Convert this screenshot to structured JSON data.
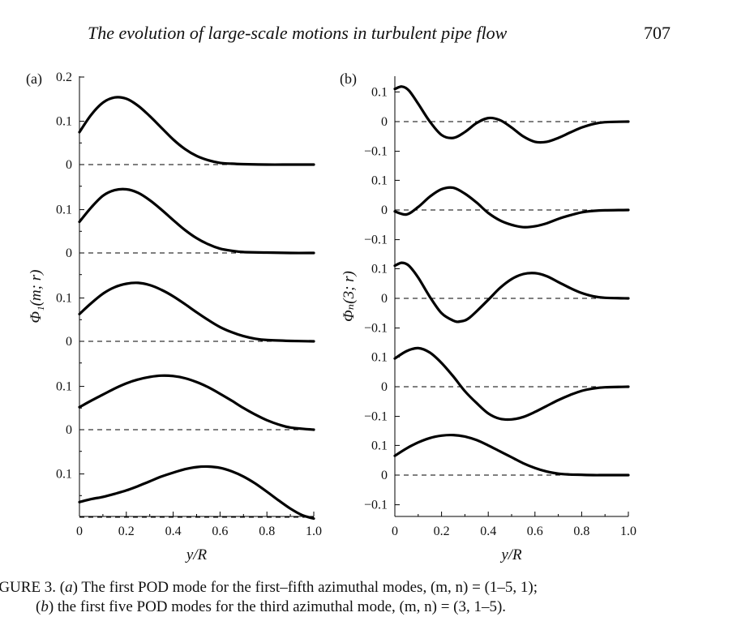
{
  "running_head": {
    "title": "The evolution of large-scale motions in turbulent pipe flow",
    "page_number": "707"
  },
  "caption": {
    "line1_prefix": "IGURE 3. (",
    "line1_a": "a",
    "line1_rest": ") The first POD mode for the first–fifth azimuthal modes, (m, n) = (1–5, 1);",
    "line2_prefix": "(",
    "line2_b": "b",
    "line2_rest": ") the first five POD modes for the third azimuthal mode, (m, n) = (3, 1–5)."
  },
  "chart_data": [
    {
      "panel_label": "(a)",
      "type": "line",
      "xlabel": "y/R",
      "ylabel": "Φ₁(m; r)",
      "xlim": [
        0,
        1
      ],
      "x_ticks": [
        "0",
        "0.2",
        "0.4",
        "0.6",
        "0.8",
        "1.0"
      ],
      "top_tick_label": "0.2",
      "stack_tick_labels": [
        "0.1",
        "0"
      ],
      "series": [
        {
          "x": [
            0,
            0.05,
            0.1,
            0.15,
            0.2,
            0.25,
            0.3,
            0.35,
            0.4,
            0.45,
            0.5,
            0.55,
            0.6,
            0.65,
            0.7,
            0.8,
            0.9,
            1.0
          ],
          "values": [
            0.075,
            0.115,
            0.143,
            0.155,
            0.152,
            0.136,
            0.112,
            0.085,
            0.058,
            0.036,
            0.02,
            0.01,
            0.004,
            0.002,
            0.001,
            0.0,
            0.0,
            0.0
          ]
        },
        {
          "x": [
            0,
            0.05,
            0.1,
            0.15,
            0.2,
            0.25,
            0.3,
            0.35,
            0.4,
            0.45,
            0.5,
            0.55,
            0.6,
            0.65,
            0.7,
            0.8,
            0.9,
            1.0
          ],
          "values": [
            0.072,
            0.105,
            0.132,
            0.145,
            0.147,
            0.139,
            0.122,
            0.1,
            0.076,
            0.053,
            0.034,
            0.02,
            0.01,
            0.005,
            0.002,
            0.001,
            0.0,
            0.0
          ]
        },
        {
          "x": [
            0,
            0.05,
            0.1,
            0.15,
            0.2,
            0.25,
            0.3,
            0.35,
            0.4,
            0.45,
            0.5,
            0.55,
            0.6,
            0.65,
            0.7,
            0.75,
            0.8,
            0.9,
            1.0
          ],
          "values": [
            0.063,
            0.088,
            0.11,
            0.125,
            0.133,
            0.135,
            0.13,
            0.119,
            0.104,
            0.086,
            0.067,
            0.049,
            0.033,
            0.021,
            0.012,
            0.006,
            0.003,
            0.001,
            0.0
          ]
        },
        {
          "x": [
            0,
            0.05,
            0.1,
            0.15,
            0.2,
            0.25,
            0.3,
            0.35,
            0.4,
            0.45,
            0.5,
            0.55,
            0.6,
            0.65,
            0.7,
            0.75,
            0.8,
            0.85,
            0.9,
            1.0
          ],
          "values": [
            0.052,
            0.067,
            0.081,
            0.095,
            0.107,
            0.116,
            0.122,
            0.125,
            0.124,
            0.119,
            0.11,
            0.098,
            0.083,
            0.067,
            0.05,
            0.035,
            0.022,
            0.012,
            0.005,
            0.0
          ]
        },
        {
          "x": [
            0,
            0.05,
            0.1,
            0.15,
            0.2,
            0.25,
            0.3,
            0.35,
            0.4,
            0.45,
            0.5,
            0.55,
            0.6,
            0.65,
            0.7,
            0.75,
            0.8,
            0.85,
            0.9,
            0.95,
            1.0
          ],
          "values": [
            0.035,
            0.042,
            0.047,
            0.054,
            0.062,
            0.072,
            0.083,
            0.094,
            0.103,
            0.111,
            0.116,
            0.117,
            0.114,
            0.106,
            0.094,
            0.078,
            0.059,
            0.039,
            0.02,
            0.005,
            -0.003
          ]
        }
      ]
    },
    {
      "panel_label": "(b)",
      "type": "line",
      "xlabel": "y/R",
      "ylabel": "Φₙ(3; r)",
      "xlim": [
        0,
        1
      ],
      "x_ticks": [
        "0",
        "0.2",
        "0.4",
        "0.6",
        "0.8",
        "1.0"
      ],
      "stack_tick_labels": [
        "0.1",
        "0",
        "−0.1"
      ],
      "series": [
        {
          "x": [
            0,
            0.03,
            0.06,
            0.1,
            0.15,
            0.2,
            0.25,
            0.3,
            0.35,
            0.4,
            0.45,
            0.5,
            0.55,
            0.6,
            0.65,
            0.7,
            0.75,
            0.8,
            0.85,
            0.9,
            1.0
          ],
          "values": [
            0.11,
            0.118,
            0.105,
            0.06,
            0.0,
            -0.045,
            -0.055,
            -0.035,
            -0.005,
            0.012,
            0.005,
            -0.02,
            -0.05,
            -0.068,
            -0.068,
            -0.055,
            -0.037,
            -0.02,
            -0.008,
            -0.002,
            0.0
          ]
        },
        {
          "x": [
            0,
            0.05,
            0.1,
            0.15,
            0.2,
            0.25,
            0.3,
            0.35,
            0.4,
            0.45,
            0.5,
            0.55,
            0.6,
            0.65,
            0.7,
            0.75,
            0.8,
            0.85,
            0.9,
            1.0
          ],
          "values": [
            -0.005,
            -0.015,
            0.01,
            0.045,
            0.07,
            0.075,
            0.055,
            0.025,
            -0.01,
            -0.035,
            -0.05,
            -0.058,
            -0.055,
            -0.045,
            -0.03,
            -0.018,
            -0.008,
            -0.003,
            -0.001,
            0.0
          ]
        },
        {
          "x": [
            0,
            0.03,
            0.06,
            0.1,
            0.15,
            0.2,
            0.25,
            0.28,
            0.32,
            0.4,
            0.45,
            0.5,
            0.55,
            0.6,
            0.65,
            0.7,
            0.75,
            0.8,
            0.85,
            0.9,
            1.0
          ],
          "values": [
            0.11,
            0.12,
            0.11,
            0.07,
            0.005,
            -0.05,
            -0.075,
            -0.078,
            -0.065,
            -0.005,
            0.035,
            0.065,
            0.082,
            0.085,
            0.075,
            0.055,
            0.035,
            0.018,
            0.007,
            0.002,
            0.0
          ]
        },
        {
          "x": [
            0,
            0.05,
            0.1,
            0.15,
            0.2,
            0.25,
            0.3,
            0.35,
            0.4,
            0.45,
            0.5,
            0.55,
            0.6,
            0.65,
            0.7,
            0.75,
            0.8,
            0.85,
            0.9,
            1.0
          ],
          "values": [
            0.095,
            0.12,
            0.13,
            0.115,
            0.08,
            0.035,
            -0.015,
            -0.055,
            -0.09,
            -0.108,
            -0.11,
            -0.102,
            -0.085,
            -0.065,
            -0.045,
            -0.028,
            -0.014,
            -0.006,
            -0.002,
            0.0
          ]
        },
        {
          "x": [
            0,
            0.05,
            0.1,
            0.15,
            0.2,
            0.25,
            0.3,
            0.35,
            0.4,
            0.45,
            0.5,
            0.55,
            0.6,
            0.65,
            0.7,
            0.75,
            0.8,
            0.85,
            0.9,
            1.0
          ],
          "values": [
            0.065,
            0.09,
            0.11,
            0.125,
            0.133,
            0.135,
            0.13,
            0.118,
            0.1,
            0.08,
            0.06,
            0.04,
            0.024,
            0.012,
            0.005,
            0.002,
            0.001,
            0.0,
            0.0,
            0.0
          ]
        }
      ]
    }
  ]
}
